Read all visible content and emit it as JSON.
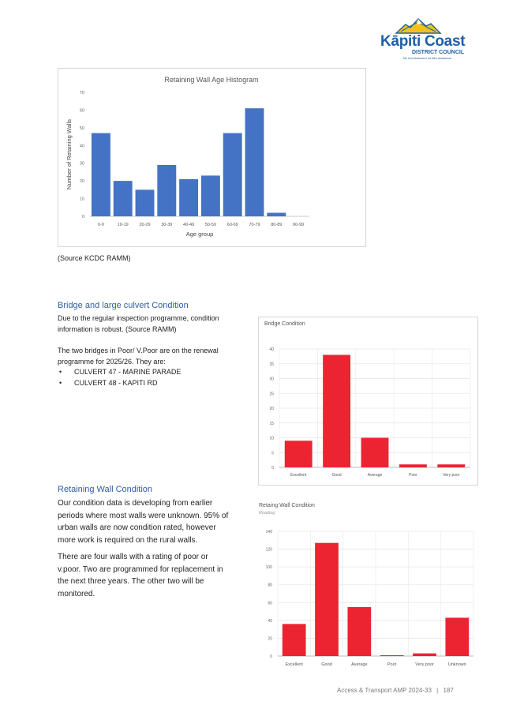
{
  "logo": {
    "name": "Kāpiti Coast",
    "subname": "DISTRICT COUNCIL",
    "tagline": "Me huri whakamuri, ka titiro whakamua"
  },
  "age_histogram": {
    "source_note": "(Source KCDC RAMM)"
  },
  "bridge_section": {
    "heading": "Bridge and large culvert Condition",
    "para1_line1": "Due to the regular inspection programme, condition",
    "para1_line2": "information is robust. (Source RAMM)",
    "para2_line1": "The two bridges in Poor/ V.Poor are on the renewal",
    "para2_line2": "programme for 2025/26.  They are:",
    "bullets": [
      "CULVERT 47 - MARINE PARADE",
      "CULVERT 48 - KAPITI RD"
    ]
  },
  "wall_section": {
    "heading": "Retaining Wall Condition",
    "para1_lines": [
      "Our condition data is developing from earlier",
      "periods where most walls were unknown.  95% of",
      "urban walls are now condition rated, however",
      "more work is required on the rural walls."
    ],
    "para2_lines": [
      "There are four walls with a rating of poor or",
      "v.poor.  Two are programmed for replacement in",
      "the next three years. The other two will be",
      "monitored."
    ]
  },
  "footer": {
    "text": "Access & Transport AMP 2024-33",
    "separator": "|",
    "page": "187"
  },
  "colors": {
    "histogram_bar": "#4472c4",
    "condition_bar": "#ec2431",
    "heading": "#2e5fa6"
  },
  "chart_data": [
    {
      "type": "bar",
      "title": "Retaining Wall Age Histogram",
      "xlabel": "Age group",
      "ylabel": "Number of Retaining Walls",
      "categories": [
        "0-9",
        "10-19",
        "20-29",
        "30-39",
        "40-49",
        "50-59",
        "60-69",
        "70-79",
        "80-89",
        "90-99"
      ],
      "values": [
        47,
        20,
        15,
        29,
        21,
        23,
        47,
        61,
        2,
        0
      ],
      "ylim": [
        0,
        70
      ],
      "yticks": [
        0,
        10,
        20,
        30,
        40,
        50,
        60,
        70
      ],
      "grid": false
    },
    {
      "type": "bar",
      "title": "Bridge Condition",
      "xlabel": "",
      "ylabel": "",
      "categories": [
        "Excellent",
        "Good",
        "Average",
        "Poor",
        "Very poor"
      ],
      "values": [
        9,
        38,
        10,
        1,
        1
      ],
      "ylim": [
        0,
        40
      ],
      "yticks": [
        0,
        5,
        10,
        15,
        20,
        25,
        30,
        35,
        40
      ],
      "grid": true
    },
    {
      "type": "bar",
      "title": "Retaing Wall Condition",
      "subtitle": "Roading",
      "xlabel": "",
      "ylabel": "",
      "categories": [
        "Excellent",
        "Good",
        "Average",
        "Poor",
        "Very poor",
        "Unknown"
      ],
      "values": [
        36,
        127,
        55,
        1,
        3,
        43
      ],
      "ylim": [
        0,
        140
      ],
      "yticks": [
        0,
        20,
        40,
        60,
        80,
        100,
        120,
        140
      ],
      "grid": true
    }
  ]
}
